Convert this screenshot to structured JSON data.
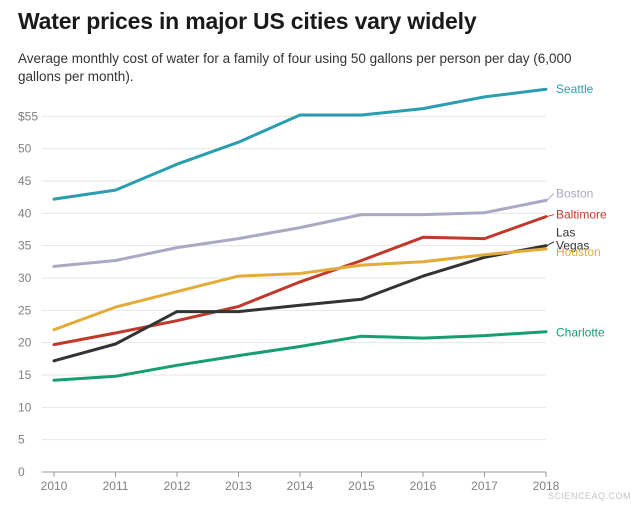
{
  "header": {
    "title": "Water prices in major US cities vary widely",
    "subtitle": "Average monthly cost of water for a family of four using 50 gallons per person per day (6,000 gallons per month)."
  },
  "chart_data": {
    "type": "line",
    "title": "Water prices in major US cities vary widely",
    "subtitle": "Average monthly cost of water for a family of four using 50 gallons per person per day (6,000 gallons per month).",
    "xlabel": "",
    "ylabel": "",
    "x": [
      2010,
      2011,
      2012,
      2013,
      2014,
      2015,
      2016,
      2017,
      2018
    ],
    "ylim": [
      0,
      60
    ],
    "y_ticks": [
      {
        "value": 0,
        "label": "0"
      },
      {
        "value": 5,
        "label": "5"
      },
      {
        "value": 10,
        "label": "10"
      },
      {
        "value": 15,
        "label": "15"
      },
      {
        "value": 20,
        "label": "20"
      },
      {
        "value": 25,
        "label": "25"
      },
      {
        "value": 30,
        "label": "30"
      },
      {
        "value": 35,
        "label": "35"
      },
      {
        "value": 40,
        "label": "40"
      },
      {
        "value": 45,
        "label": "45"
      },
      {
        "value": 50,
        "label": "50"
      },
      {
        "value": 55,
        "label": "$55"
      }
    ],
    "x_ticks": [
      "2010",
      "2011",
      "2012",
      "2013",
      "2014",
      "2015",
      "2016",
      "2017",
      "2018"
    ],
    "grid": true,
    "series": [
      {
        "name": "Seattle",
        "label": "Seattle",
        "color": "#2b9db0",
        "values": [
          42.2,
          43.6,
          47.6,
          51.0,
          55.2,
          55.2,
          56.2,
          58.0,
          59.2
        ]
      },
      {
        "name": "Boston",
        "label": "Boston",
        "color": "#a9a9c6",
        "values": [
          31.8,
          32.7,
          34.7,
          36.1,
          37.8,
          39.8,
          39.8,
          40.1,
          42.0
        ]
      },
      {
        "name": "Baltimore",
        "label": "Baltimore",
        "color": "#c0392b",
        "values": [
          19.7,
          21.5,
          23.4,
          25.6,
          29.4,
          32.7,
          36.3,
          36.1,
          39.5
        ]
      },
      {
        "name": "Las Vegas",
        "label": "Las Vegas",
        "color": "#333333",
        "values": [
          17.2,
          19.8,
          24.8,
          24.8,
          25.8,
          26.7,
          30.3,
          33.2,
          35.0
        ]
      },
      {
        "name": "Houston",
        "label": "Houston",
        "color": "#e3ac3a",
        "values": [
          22.0,
          25.5,
          27.9,
          30.3,
          30.7,
          32.0,
          32.5,
          33.6,
          34.5
        ]
      },
      {
        "name": "Charlotte",
        "label": "Charlotte",
        "color": "#179c73",
        "values": [
          14.2,
          14.8,
          16.5,
          18.0,
          19.4,
          21.0,
          20.7,
          21.1,
          21.7
        ]
      }
    ]
  },
  "watermark": "SCIENCEAQ.COM"
}
